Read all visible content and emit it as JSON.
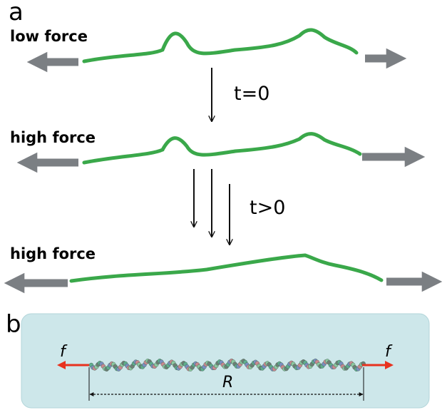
{
  "panel_a": {
    "label": "a",
    "rows": [
      {
        "label": "low force"
      },
      {
        "label": "high force"
      },
      {
        "label": "high force"
      }
    ],
    "steps": [
      "t=0",
      "t>0"
    ]
  },
  "panel_b": {
    "label": "b",
    "force_labels": [
      "f",
      "f"
    ],
    "distance_label": "R"
  }
}
